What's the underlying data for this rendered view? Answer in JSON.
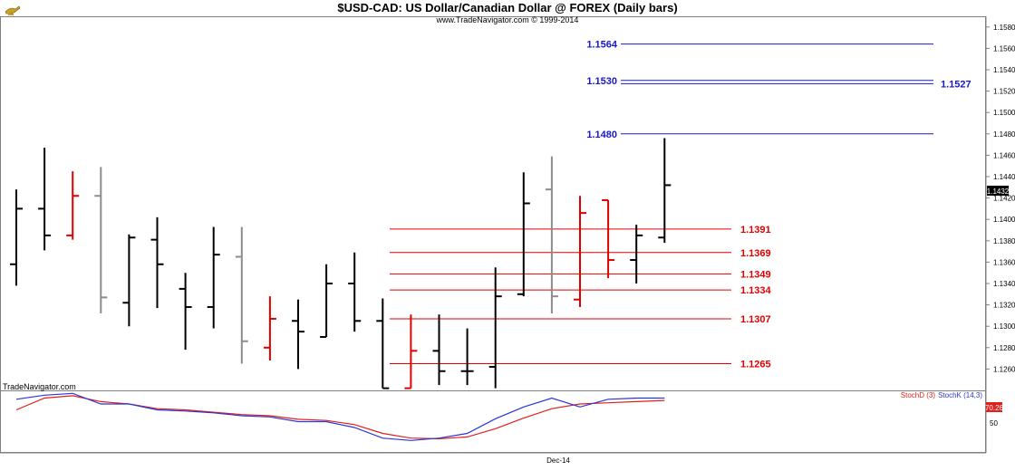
{
  "header": {
    "title": "$USD-CAD:  US Dollar/Canadian Dollar @ FOREX  (Daily bars)",
    "copyright": "www.TradeNavigator.com © 1999-2014",
    "logo_icon": "genie-lamp-icon"
  },
  "watermark": "TradeNavigator.com",
  "x_axis_label": "Dec-14",
  "price_tag": "1.1432",
  "indicator": {
    "legend_d": "StochD (3)",
    "legend_k": "StochK (14,3)",
    "tag_value": "70.26",
    "tick": "50",
    "color_d": "#e0201c",
    "color_k": "#2a36d8"
  },
  "colors": {
    "black_bar": "#000000",
    "red_bar": "#e00000",
    "gray_bar": "#8c8c8c",
    "resistance": "#1818c8",
    "support": "#e00000"
  },
  "chart_data": {
    "type": "ohlc",
    "title": "$USD-CAD:  US Dollar/Canadian Dollar @ FOREX  (Daily bars)",
    "ylim": [
      1.124,
      1.159
    ],
    "y_ticks": [
      "1.1580",
      "1.1560",
      "1.1540",
      "1.1520",
      "1.1500",
      "1.1480",
      "1.1460",
      "1.1440",
      "1.1420",
      "1.1400",
      "1.1380",
      "1.1360",
      "1.1340",
      "1.1320",
      "1.1300",
      "1.1280",
      "1.1260"
    ],
    "bars": [
      {
        "o": 1.1358,
        "h": 1.1428,
        "l": 1.1338,
        "c": 1.141,
        "color": "black"
      },
      {
        "o": 1.141,
        "h": 1.1467,
        "l": 1.1371,
        "c": 1.1385,
        "color": "black"
      },
      {
        "o": 1.1385,
        "h": 1.1445,
        "l": 1.1381,
        "c": 1.1422,
        "color": "red"
      },
      {
        "o": 1.1422,
        "h": 1.1449,
        "l": 1.1312,
        "c": 1.1327,
        "color": "gray"
      },
      {
        "o": 1.1322,
        "h": 1.1386,
        "l": 1.13,
        "c": 1.1383,
        "color": "black"
      },
      {
        "o": 1.1381,
        "h": 1.1402,
        "l": 1.1317,
        "c": 1.1358,
        "color": "black"
      },
      {
        "o": 1.1335,
        "h": 1.135,
        "l": 1.1278,
        "c": 1.1318,
        "color": "black"
      },
      {
        "o": 1.1318,
        "h": 1.1393,
        "l": 1.1298,
        "c": 1.1367,
        "color": "black"
      },
      {
        "o": 1.1365,
        "h": 1.1393,
        "l": 1.1265,
        "c": 1.1286,
        "color": "gray"
      },
      {
        "o": 1.128,
        "h": 1.1328,
        "l": 1.1268,
        "c": 1.1307,
        "color": "red"
      },
      {
        "o": 1.1305,
        "h": 1.1325,
        "l": 1.126,
        "c": 1.1295,
        "color": "black"
      },
      {
        "o": 1.129,
        "h": 1.1358,
        "l": 1.129,
        "c": 1.134,
        "color": "black"
      },
      {
        "o": 1.134,
        "h": 1.1369,
        "l": 1.1295,
        "c": 1.1305,
        "color": "black"
      },
      {
        "o": 1.1305,
        "h": 1.1326,
        "l": 1.1242,
        "c": 1.1242,
        "color": "black"
      },
      {
        "o": 1.1242,
        "h": 1.1311,
        "l": 1.1242,
        "c": 1.1277,
        "color": "red"
      },
      {
        "o": 1.1277,
        "h": 1.1311,
        "l": 1.1245,
        "c": 1.1258,
        "color": "black"
      },
      {
        "o": 1.1258,
        "h": 1.1298,
        "l": 1.1245,
        "c": 1.1258,
        "color": "black"
      },
      {
        "o": 1.1262,
        "h": 1.1355,
        "l": 1.1242,
        "c": 1.1328,
        "color": "black"
      },
      {
        "o": 1.133,
        "h": 1.1444,
        "l": 1.1328,
        "c": 1.1415,
        "color": "black"
      },
      {
        "o": 1.1428,
        "h": 1.1459,
        "l": 1.1312,
        "c": 1.1328,
        "color": "gray"
      },
      {
        "o": 1.1325,
        "h": 1.1422,
        "l": 1.1318,
        "c": 1.1406,
        "color": "red"
      },
      {
        "o": 1.1418,
        "h": 1.1418,
        "l": 1.1345,
        "c": 1.1362,
        "color": "red"
      },
      {
        "o": 1.1362,
        "h": 1.1395,
        "l": 1.134,
        "c": 1.1385,
        "color": "black"
      },
      {
        "o": 1.1383,
        "h": 1.1476,
        "l": 1.1378,
        "c": 1.1432,
        "color": "black"
      }
    ],
    "levels": [
      {
        "value": 1.1564,
        "label": "1.1564",
        "type": "resistance",
        "label_side": "left"
      },
      {
        "value": 1.153,
        "label": "1.1530",
        "type": "resistance",
        "label_side": "left"
      },
      {
        "value": 1.1527,
        "label": "1.1527",
        "type": "resistance",
        "label_side": "right"
      },
      {
        "value": 1.148,
        "label": "1.1480",
        "type": "resistance",
        "label_side": "left"
      },
      {
        "value": 1.1391,
        "label": "1.1391",
        "type": "support",
        "label_side": "right"
      },
      {
        "value": 1.1369,
        "label": "1.1369",
        "type": "support",
        "label_side": "right"
      },
      {
        "value": 1.1349,
        "label": "1.1349",
        "type": "support",
        "label_side": "right"
      },
      {
        "value": 1.1334,
        "label": "1.1334",
        "type": "support",
        "label_side": "right"
      },
      {
        "value": 1.1307,
        "label": "1.1307",
        "type": "support",
        "label_side": "right"
      },
      {
        "value": 1.1265,
        "label": "1.1265",
        "type": "support",
        "label_side": "right"
      }
    ],
    "stoch": {
      "ylim": [
        0,
        100
      ],
      "k": [
        88,
        95,
        98,
        80,
        80,
        70,
        68,
        65,
        60,
        58,
        50,
        50,
        40,
        22,
        18,
        22,
        30,
        55,
        75,
        90,
        75,
        88,
        90,
        90
      ],
      "d": [
        70,
        90,
        94,
        84,
        80,
        72,
        70,
        66,
        62,
        60,
        54,
        52,
        45,
        30,
        22,
        21,
        24,
        38,
        56,
        72,
        80,
        82,
        84,
        86
      ]
    }
  }
}
